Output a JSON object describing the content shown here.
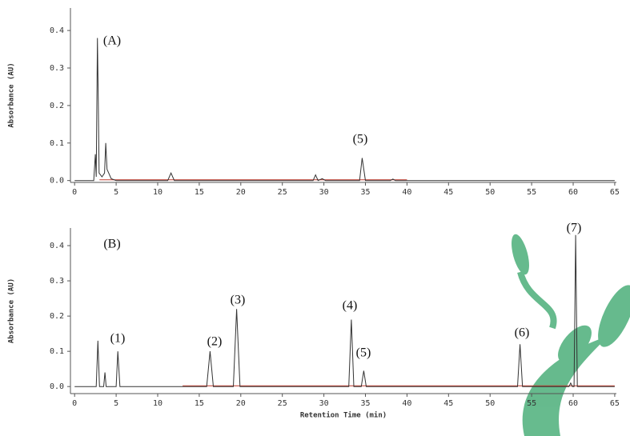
{
  "chart_data": [
    {
      "type": "line",
      "y_label": "Absorbance (AU)",
      "annotations": [
        "(A)",
        "(5)"
      ],
      "xlim": [
        -0.5,
        65.2
      ],
      "ylim": [
        -0.005,
        0.46
      ],
      "xticks": [
        0,
        5,
        10,
        15,
        20,
        25,
        30,
        35,
        40,
        45,
        50,
        55,
        60,
        65
      ],
      "yticks": [
        {
          "value": 0,
          "label": "0.0"
        },
        0.1,
        0.2,
        0.3,
        0.4
      ],
      "series": [
        {
          "color": "#c0392b",
          "x": [
            3,
            40
          ],
          "values": [
            0.002,
            0.002
          ]
        },
        {
          "color": "#333333",
          "x": [
            0,
            2.3,
            2.5,
            2.6,
            2.75,
            2.85,
            2.95,
            3.3,
            3.6,
            3.75,
            3.9,
            4.1,
            4.4,
            5,
            11.2,
            11.6,
            12,
            28.7,
            29,
            29.3,
            29.8,
            30.2,
            34.3,
            34.6,
            35,
            38,
            38.3,
            38.6,
            65
          ],
          "values": [
            0,
            0,
            0.07,
            0.01,
            0.38,
            0.21,
            0.02,
            0.01,
            0.02,
            0.1,
            0.03,
            0.02,
            0.005,
            0,
            0,
            0.02,
            0,
            0,
            0.015,
            0,
            0.005,
            0,
            0,
            0.06,
            0,
            0,
            0.004,
            0,
            0
          ]
        }
      ]
    },
    {
      "type": "line",
      "y_label": "Absorbance (AU)",
      "x_label": "Retention Time (min)",
      "annotations": [
        "(B)",
        "(1)",
        "(2)",
        "(3)",
        "(4)",
        "(5)",
        "(6)",
        "(7)"
      ],
      "xlim": [
        -0.5,
        65.2
      ],
      "ylim": [
        -0.02,
        0.45
      ],
      "xticks": [
        0,
        5,
        10,
        15,
        20,
        25,
        30,
        35,
        40,
        45,
        50,
        55,
        60,
        65
      ],
      "yticks": [
        {
          "value": 0,
          "label": "0.0"
        },
        0.1,
        0.2,
        0.3,
        0.4
      ],
      "series": [
        {
          "color": "#c0392b",
          "x": [
            13,
            65
          ],
          "values": [
            0.002,
            0.002
          ]
        },
        {
          "color": "#333333",
          "x": [
            0,
            2.6,
            2.8,
            3,
            3.5,
            3.65,
            3.8,
            5,
            5.2,
            5.45,
            15.9,
            16.3,
            16.7,
            19.1,
            19.5,
            19.9,
            33,
            33.3,
            33.6,
            34.5,
            34.8,
            35.1,
            53.3,
            53.6,
            53.9,
            59.5,
            59.7,
            59.9,
            60.1,
            60.3,
            60.5,
            65
          ],
          "values": [
            0,
            0,
            0.13,
            0,
            0,
            0.04,
            0,
            0,
            0.1,
            0,
            0,
            0.1,
            0,
            0,
            0.22,
            0,
            0,
            0.19,
            0,
            0,
            0.045,
            0,
            0,
            0.12,
            0,
            0,
            0.01,
            0,
            0,
            0.43,
            0,
            0
          ]
        }
      ]
    }
  ]
}
